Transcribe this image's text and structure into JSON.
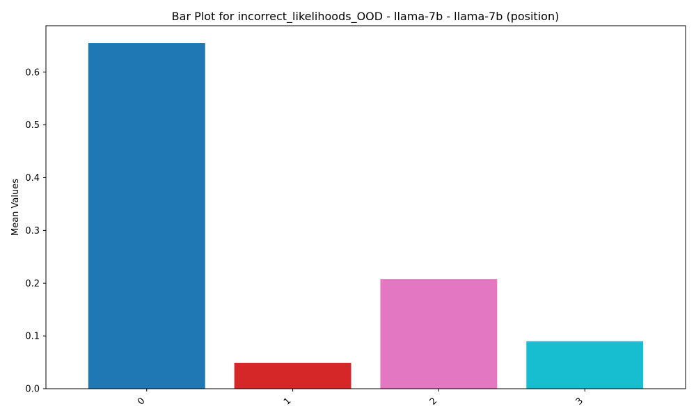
{
  "chart_data": {
    "type": "bar",
    "title": "Bar Plot for incorrect_likelihoods_OOD - llama-7b - llama-7b (position)",
    "xlabel": "",
    "ylabel": "Mean Values",
    "categories": [
      "0",
      "1",
      "2",
      "3"
    ],
    "values": [
      0.655,
      0.049,
      0.208,
      0.09
    ],
    "colors": [
      "#1f77b4",
      "#d62728",
      "#e377c2",
      "#17becf"
    ],
    "ylim": [
      0,
      0.688
    ],
    "yticks": [
      0.0,
      0.1,
      0.2,
      0.3,
      0.4,
      0.5,
      0.6
    ],
    "ytick_labels": [
      "0.0",
      "0.1",
      "0.2",
      "0.3",
      "0.4",
      "0.5",
      "0.6"
    ],
    "grid": false,
    "legend": "none"
  }
}
